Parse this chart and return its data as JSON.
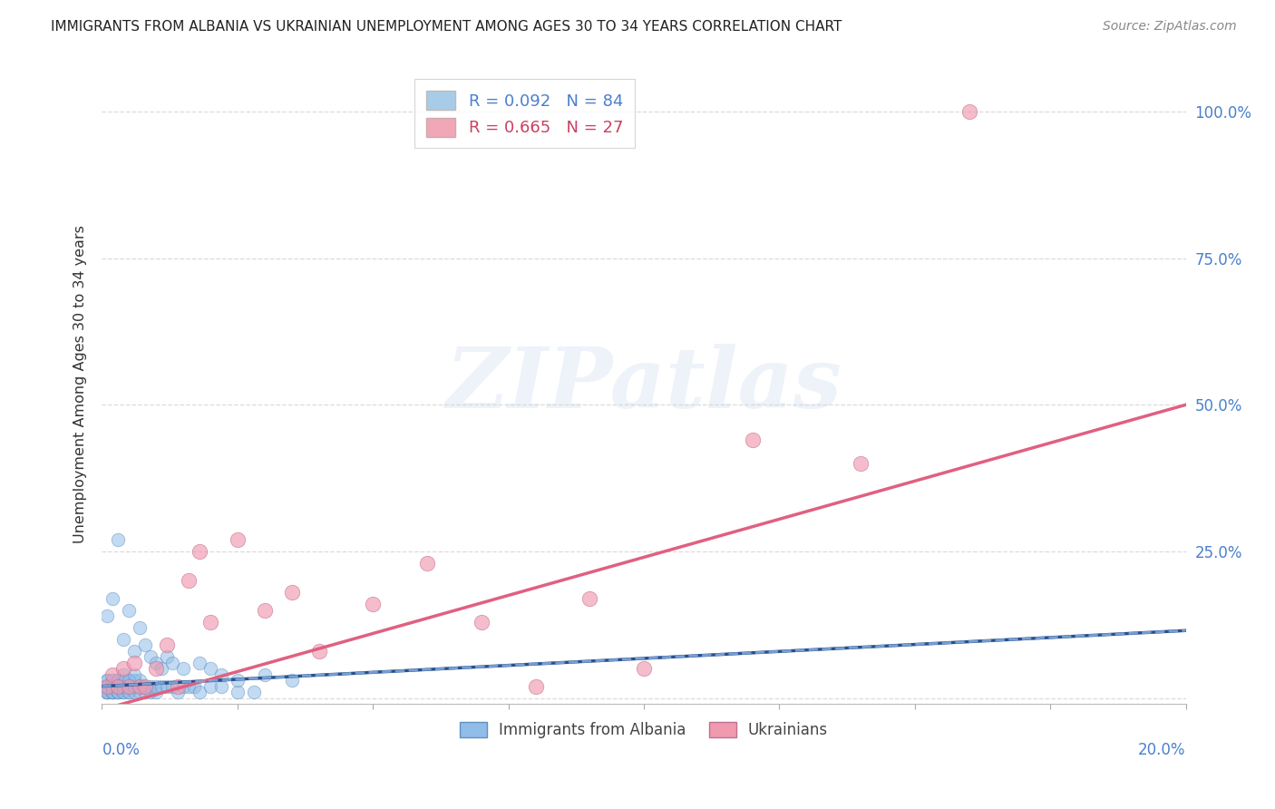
{
  "title": "IMMIGRANTS FROM ALBANIA VS UKRAINIAN UNEMPLOYMENT AMONG AGES 30 TO 34 YEARS CORRELATION CHART",
  "source": "Source: ZipAtlas.com",
  "ylabel": "Unemployment Among Ages 30 to 34 years",
  "xtick_left": "0.0%",
  "xtick_right": "20.0%",
  "xlim": [
    0.0,
    0.2
  ],
  "ylim": [
    -0.01,
    1.08
  ],
  "yticks": [
    0.0,
    0.25,
    0.5,
    0.75,
    1.0
  ],
  "ytick_labels": [
    "",
    "25.0%",
    "50.0%",
    "75.0%",
    "100.0%"
  ],
  "watermark_text": "ZIPatlas",
  "albania_color": "#90bce8",
  "ukraine_color": "#f09ab0",
  "trend_albania_solid_color": "#2a5090",
  "trend_albania_dash_color": "#80aad8",
  "trend_ukraine_color": "#e06080",
  "legend_color1": "#a8cce8",
  "legend_color2": "#f0a8b8",
  "legend_text_color1": "#4a80cc",
  "legend_text_color2": "#cc4060",
  "albania_R": 0.092,
  "albania_N": 84,
  "ukraine_R": 0.665,
  "ukraine_N": 27,
  "albania_x": [
    0.001,
    0.001,
    0.001,
    0.001,
    0.001,
    0.001,
    0.001,
    0.001,
    0.001,
    0.001,
    0.002,
    0.002,
    0.002,
    0.002,
    0.002,
    0.002,
    0.002,
    0.002,
    0.002,
    0.002,
    0.003,
    0.003,
    0.003,
    0.003,
    0.003,
    0.003,
    0.003,
    0.004,
    0.004,
    0.004,
    0.004,
    0.004,
    0.005,
    0.005,
    0.005,
    0.005,
    0.006,
    0.006,
    0.006,
    0.007,
    0.007,
    0.007,
    0.008,
    0.008,
    0.009,
    0.009,
    0.01,
    0.01,
    0.011,
    0.012,
    0.013,
    0.014,
    0.015,
    0.016,
    0.017,
    0.018,
    0.02,
    0.022,
    0.025,
    0.028,
    0.001,
    0.002,
    0.003,
    0.004,
    0.005,
    0.006,
    0.007,
    0.008,
    0.009,
    0.01,
    0.011,
    0.012,
    0.013,
    0.015,
    0.018,
    0.02,
    0.022,
    0.025,
    0.03,
    0.035,
    0.003,
    0.004,
    0.005,
    0.006
  ],
  "albania_y": [
    0.01,
    0.02,
    0.03,
    0.01,
    0.02,
    0.01,
    0.02,
    0.03,
    0.01,
    0.02,
    0.01,
    0.02,
    0.03,
    0.01,
    0.02,
    0.03,
    0.01,
    0.02,
    0.01,
    0.02,
    0.01,
    0.02,
    0.01,
    0.02,
    0.03,
    0.01,
    0.02,
    0.01,
    0.02,
    0.03,
    0.01,
    0.02,
    0.01,
    0.02,
    0.03,
    0.01,
    0.01,
    0.02,
    0.03,
    0.01,
    0.02,
    0.03,
    0.01,
    0.02,
    0.01,
    0.02,
    0.01,
    0.02,
    0.02,
    0.02,
    0.02,
    0.01,
    0.02,
    0.02,
    0.02,
    0.01,
    0.02,
    0.02,
    0.01,
    0.01,
    0.14,
    0.17,
    0.27,
    0.1,
    0.15,
    0.08,
    0.12,
    0.09,
    0.07,
    0.06,
    0.05,
    0.07,
    0.06,
    0.05,
    0.06,
    0.05,
    0.04,
    0.03,
    0.04,
    0.03,
    0.03,
    0.04,
    0.03,
    0.04
  ],
  "ukraine_x": [
    0.001,
    0.002,
    0.003,
    0.004,
    0.005,
    0.006,
    0.007,
    0.008,
    0.01,
    0.012,
    0.014,
    0.016,
    0.018,
    0.02,
    0.025,
    0.03,
    0.035,
    0.04,
    0.05,
    0.06,
    0.07,
    0.08,
    0.09,
    0.1,
    0.12,
    0.14,
    0.16
  ],
  "ukraine_y": [
    0.02,
    0.04,
    0.02,
    0.05,
    0.02,
    0.06,
    0.02,
    0.02,
    0.05,
    0.09,
    0.02,
    0.2,
    0.25,
    0.13,
    0.27,
    0.15,
    0.18,
    0.08,
    0.16,
    0.23,
    0.13,
    0.02,
    0.17,
    0.05,
    0.44,
    0.4,
    1.0
  ],
  "ukraine_trend_x0": 0.0,
  "ukraine_trend_y0": -0.02,
  "ukraine_trend_x1": 0.2,
  "ukraine_trend_y1": 0.5,
  "albania_trend_x0": 0.0,
  "albania_trend_y0": 0.02,
  "albania_trend_x1": 0.2,
  "albania_trend_y1": 0.115
}
